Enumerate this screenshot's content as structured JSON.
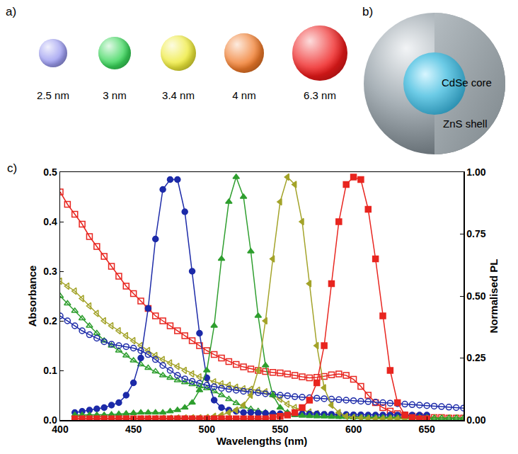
{
  "panel_a": {
    "letter": "a)",
    "spheres": [
      {
        "label": "2.5 nm",
        "color": "#9c9cf0"
      },
      {
        "label": "3 nm",
        "color": "#3ad65a"
      },
      {
        "label": "3.4 nm",
        "color": "#eeea3a"
      },
      {
        "label": "4 nm",
        "color": "#f07a2a"
      },
      {
        "label": "6.3 nm",
        "color": "#ee1a1a"
      }
    ]
  },
  "panel_b": {
    "letter": "b)",
    "labels": [
      "CdSe core",
      "ZnS shell"
    ]
  },
  "panel_c": {
    "letter": "c)"
  },
  "chart_data": {
    "type": "line",
    "x_label": "Wavelengths (nm)",
    "y_label": "Absorbance",
    "y2_label": "Normalised PL",
    "xlim": [
      400,
      675
    ],
    "xticks": [
      400,
      450,
      500,
      550,
      600,
      650
    ],
    "ylim": [
      0,
      0.5
    ],
    "yticks": [
      {
        "value": 0,
        "label": "0.0"
      },
      0.1,
      0.2,
      0.3,
      0.4,
      0.5
    ],
    "y2lim": [
      0,
      1
    ],
    "y2ticks": [
      {
        "value": 0,
        "label": "0.00"
      },
      0.25,
      {
        "value": 0.5,
        "label": "0.50"
      },
      0.75,
      {
        "value": 1,
        "label": "1.00"
      }
    ],
    "grid": false,
    "series": [
      {
        "color": "#e8251f",
        "marker": "square-open",
        "x": [
          400,
          405,
          410,
          415,
          420,
          425,
          430,
          435,
          440,
          445,
          450,
          455,
          460,
          465,
          470,
          475,
          480,
          485,
          490,
          495,
          500,
          505,
          510,
          515,
          520,
          525,
          530,
          535,
          540,
          545,
          550,
          555,
          560,
          565,
          570,
          575,
          580,
          585,
          590,
          595,
          600,
          605,
          610,
          615,
          620,
          625,
          630,
          635,
          640,
          645,
          650,
          655,
          660,
          665,
          670,
          675
        ],
        "values": [
          0.46,
          0.435,
          0.415,
          0.395,
          0.37,
          0.35,
          0.33,
          0.31,
          0.29,
          0.27,
          0.255,
          0.24,
          0.225,
          0.21,
          0.2,
          0.19,
          0.18,
          0.17,
          0.16,
          0.15,
          0.14,
          0.132,
          0.125,
          0.118,
          0.112,
          0.107,
          0.103,
          0.1,
          0.098,
          0.096,
          0.095,
          0.093,
          0.09,
          0.087,
          0.085,
          0.086,
          0.088,
          0.091,
          0.093,
          0.09,
          0.082,
          0.068,
          0.05,
          0.035,
          0.025,
          0.018,
          0.013,
          0.01,
          0.008,
          0.007,
          0.006,
          0.005,
          0.005,
          0.004,
          0.004,
          0.004
        ]
      },
      {
        "color": "#a3a329",
        "marker": "triangle-left-open",
        "x": [
          400,
          405,
          410,
          415,
          420,
          425,
          430,
          435,
          440,
          445,
          450,
          455,
          460,
          465,
          470,
          475,
          480,
          485,
          490,
          495,
          500,
          505,
          510,
          515,
          520,
          525,
          530,
          535,
          540,
          545,
          550,
          555,
          560,
          565,
          570,
          575,
          580,
          585,
          590,
          595,
          600,
          605,
          610,
          615,
          620,
          625,
          630,
          635,
          640,
          645,
          650,
          655,
          660,
          665,
          670,
          675
        ],
        "values": [
          0.28,
          0.27,
          0.26,
          0.245,
          0.23,
          0.215,
          0.2,
          0.19,
          0.18,
          0.17,
          0.16,
          0.15,
          0.14,
          0.13,
          0.122,
          0.115,
          0.108,
          0.1,
          0.093,
          0.087,
          0.082,
          0.077,
          0.073,
          0.07,
          0.066,
          0.063,
          0.062,
          0.06,
          0.057,
          0.05,
          0.042,
          0.032,
          0.025,
          0.02,
          0.016,
          0.013,
          0.011,
          0.01,
          0.009,
          0.008,
          0.007,
          0.007,
          0.006,
          0.006,
          0.006,
          0.005,
          0.005,
          0.005,
          0.005,
          0.005,
          0.004,
          0.004,
          0.004,
          0.004,
          0.004,
          0.004
        ]
      },
      {
        "color": "#2e9e2e",
        "marker": "triangle-up-open",
        "x": [
          400,
          405,
          410,
          415,
          420,
          425,
          430,
          435,
          440,
          445,
          450,
          455,
          460,
          465,
          470,
          475,
          480,
          485,
          490,
          495,
          500,
          505,
          510,
          515,
          520,
          525,
          530,
          535,
          540,
          545,
          550,
          555,
          560,
          565,
          570,
          575,
          580,
          585,
          590,
          595,
          600,
          605,
          610,
          615,
          620,
          625,
          630,
          635,
          640,
          645,
          650,
          655,
          660,
          665,
          670,
          675
        ],
        "values": [
          0.25,
          0.235,
          0.22,
          0.205,
          0.19,
          0.175,
          0.16,
          0.15,
          0.14,
          0.13,
          0.12,
          0.112,
          0.105,
          0.098,
          0.09,
          0.085,
          0.08,
          0.076,
          0.072,
          0.068,
          0.064,
          0.058,
          0.05,
          0.042,
          0.034,
          0.027,
          0.022,
          0.018,
          0.015,
          0.013,
          0.012,
          0.011,
          0.01,
          0.009,
          0.009,
          0.008,
          0.008,
          0.007,
          0.007,
          0.007,
          0.006,
          0.006,
          0.006,
          0.006,
          0.005,
          0.005,
          0.005,
          0.005,
          0.005,
          0.005,
          0.004,
          0.004,
          0.004,
          0.004,
          0.004,
          0.004
        ]
      },
      {
        "color": "#1c2aa8",
        "marker": "circle-open",
        "x": [
          400,
          405,
          410,
          415,
          420,
          425,
          430,
          435,
          440,
          445,
          450,
          455,
          460,
          465,
          470,
          475,
          480,
          485,
          490,
          495,
          500,
          505,
          510,
          515,
          520,
          525,
          530,
          535,
          540,
          545,
          550,
          555,
          560,
          565,
          570,
          575,
          580,
          585,
          590,
          595,
          600,
          605,
          610,
          615,
          620,
          625,
          630,
          635,
          640,
          645,
          650,
          655,
          660,
          665,
          670,
          675
        ],
        "values": [
          0.21,
          0.2,
          0.19,
          0.18,
          0.172,
          0.165,
          0.158,
          0.153,
          0.15,
          0.148,
          0.145,
          0.14,
          0.132,
          0.122,
          0.11,
          0.1,
          0.09,
          0.083,
          0.078,
          0.074,
          0.07,
          0.067,
          0.064,
          0.062,
          0.06,
          0.058,
          0.056,
          0.055,
          0.053,
          0.052,
          0.05,
          0.049,
          0.047,
          0.046,
          0.045,
          0.044,
          0.043,
          0.042,
          0.041,
          0.04,
          0.039,
          0.038,
          0.037,
          0.036,
          0.035,
          0.034,
          0.033,
          0.032,
          0.031,
          0.03,
          0.029,
          0.028,
          0.027,
          0.026,
          0.025,
          0.024
        ]
      },
      {
        "color": "#1c2aa8",
        "marker": "circle",
        "axis": "y2",
        "x": [
          410,
          415,
          420,
          425,
          430,
          435,
          440,
          445,
          450,
          455,
          460,
          465,
          470,
          475,
          480,
          485,
          490,
          495,
          500,
          505,
          510,
          515,
          520,
          525,
          530,
          535,
          540,
          545,
          550,
          555,
          560,
          565,
          570,
          575,
          580,
          585,
          590,
          595,
          600,
          605,
          610,
          615,
          620,
          625,
          630,
          635,
          640,
          645,
          650
        ],
        "values": [
          0.03,
          0.035,
          0.04,
          0.045,
          0.05,
          0.06,
          0.07,
          0.1,
          0.15,
          0.25,
          0.45,
          0.73,
          0.93,
          0.97,
          0.97,
          0.84,
          0.6,
          0.35,
          0.17,
          0.08,
          0.05,
          0.04,
          0.035,
          0.03,
          0.03,
          0.028,
          0.027,
          0.026,
          0.025,
          0.025,
          0.025,
          0.025,
          0.024,
          0.024,
          0.023,
          0.023,
          0.022,
          0.022,
          0.021,
          0.021,
          0.02,
          0.02,
          0.02,
          0.02,
          0.02,
          0.02,
          0.02,
          0.02,
          0.02
        ]
      },
      {
        "color": "#2e9e2e",
        "marker": "triangle-up",
        "axis": "y2",
        "x": [
          410,
          415,
          420,
          425,
          430,
          435,
          440,
          445,
          450,
          455,
          460,
          465,
          470,
          475,
          480,
          485,
          490,
          495,
          500,
          505,
          510,
          515,
          520,
          525,
          530,
          535,
          540,
          545,
          550,
          555,
          560,
          565,
          570,
          575,
          580,
          585,
          590,
          595,
          600,
          605,
          610,
          615,
          620,
          625,
          630,
          635,
          640,
          645,
          650
        ],
        "values": [
          0.02,
          0.02,
          0.02,
          0.02,
          0.02,
          0.022,
          0.024,
          0.026,
          0.028,
          0.03,
          0.03,
          0.03,
          0.03,
          0.035,
          0.04,
          0.05,
          0.07,
          0.12,
          0.2,
          0.38,
          0.65,
          0.88,
          0.98,
          0.9,
          0.68,
          0.42,
          0.22,
          0.1,
          0.05,
          0.03,
          0.02,
          0.018,
          0.016,
          0.015,
          0.014,
          0.013,
          0.012,
          0.012,
          0.011,
          0.011,
          0.01,
          0.01,
          0.01,
          0.01,
          0.01,
          0.01,
          0.01,
          0.01,
          0.01
        ]
      },
      {
        "color": "#a3a329",
        "marker": "triangle-left",
        "axis": "y2",
        "x": [
          410,
          415,
          420,
          425,
          430,
          435,
          440,
          445,
          450,
          455,
          460,
          465,
          470,
          475,
          480,
          485,
          490,
          495,
          500,
          505,
          510,
          515,
          520,
          525,
          530,
          535,
          540,
          545,
          550,
          555,
          560,
          565,
          570,
          575,
          580,
          585,
          590,
          595,
          600,
          605,
          610,
          615,
          620,
          625,
          630,
          635,
          640,
          645,
          650
        ],
        "values": [
          0.005,
          0.005,
          0.005,
          0.005,
          0.005,
          0.005,
          0.005,
          0.005,
          0.005,
          0.005,
          0.006,
          0.006,
          0.007,
          0.007,
          0.008,
          0.008,
          0.009,
          0.009,
          0.01,
          0.015,
          0.02,
          0.03,
          0.04,
          0.06,
          0.1,
          0.2,
          0.4,
          0.65,
          0.88,
          0.98,
          0.95,
          0.8,
          0.55,
          0.3,
          0.13,
          0.06,
          0.03,
          0.015,
          0.01,
          0.008,
          0.006,
          0.005,
          0.005,
          0.005,
          0.005,
          0.005,
          0.005,
          0.005,
          0.005
        ]
      },
      {
        "color": "#e8251f",
        "marker": "square",
        "axis": "y2",
        "x": [
          410,
          415,
          420,
          425,
          430,
          435,
          440,
          445,
          450,
          455,
          460,
          465,
          470,
          475,
          480,
          485,
          490,
          495,
          500,
          505,
          510,
          515,
          520,
          525,
          530,
          535,
          540,
          545,
          550,
          555,
          560,
          565,
          570,
          575,
          580,
          585,
          590,
          595,
          600,
          605,
          610,
          615,
          620,
          625,
          630,
          635,
          640,
          645,
          650
        ],
        "values": [
          0.005,
          0.005,
          0.005,
          0.005,
          0.005,
          0.005,
          0.005,
          0.005,
          0.005,
          0.005,
          0.005,
          0.005,
          0.005,
          0.005,
          0.005,
          0.005,
          0.005,
          0.005,
          0.005,
          0.005,
          0.005,
          0.005,
          0.005,
          0.005,
          0.005,
          0.005,
          0.005,
          0.01,
          0.015,
          0.02,
          0.03,
          0.05,
          0.08,
          0.15,
          0.3,
          0.55,
          0.8,
          0.95,
          0.98,
          0.97,
          0.85,
          0.65,
          0.42,
          0.2,
          0.07,
          0.02,
          0.01,
          0.005,
          0.005
        ]
      }
    ]
  }
}
